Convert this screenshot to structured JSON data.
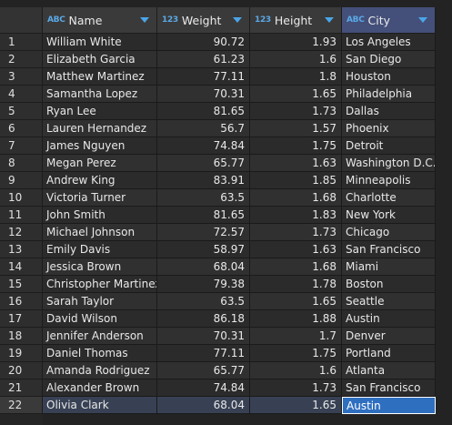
{
  "columns": [
    {
      "key": "name",
      "label": "Name",
      "type_icon": "ABC",
      "icon_name": "text-type-icon"
    },
    {
      "key": "weight",
      "label": "Weight",
      "type_icon": "123",
      "icon_name": "number-type-icon"
    },
    {
      "key": "height",
      "label": "Height",
      "type_icon": "123",
      "icon_name": "number-type-icon"
    },
    {
      "key": "city",
      "label": "City",
      "type_icon": "ABC",
      "icon_name": "text-type-icon"
    }
  ],
  "rows": [
    {
      "num": "1",
      "name": "William White",
      "weight": "90.72",
      "height": "1.93",
      "city": "Los Angeles"
    },
    {
      "num": "2",
      "name": "Elizabeth Garcia",
      "weight": "61.23",
      "height": "1.6",
      "city": "San Diego"
    },
    {
      "num": "3",
      "name": "Matthew Martinez",
      "weight": "77.11",
      "height": "1.8",
      "city": "Houston"
    },
    {
      "num": "4",
      "name": "Samantha Lopez",
      "weight": "70.31",
      "height": "1.65",
      "city": "Philadelphia"
    },
    {
      "num": "5",
      "name": "Ryan Lee",
      "weight": "81.65",
      "height": "1.73",
      "city": "Dallas"
    },
    {
      "num": "6",
      "name": "Lauren Hernandez",
      "weight": "56.7",
      "height": "1.57",
      "city": "Phoenix"
    },
    {
      "num": "7",
      "name": "James Nguyen",
      "weight": "74.84",
      "height": "1.75",
      "city": "Detroit"
    },
    {
      "num": "8",
      "name": "Megan Perez",
      "weight": "65.77",
      "height": "1.63",
      "city": "Washington D.C."
    },
    {
      "num": "9",
      "name": "Andrew King",
      "weight": "83.91",
      "height": "1.85",
      "city": "Minneapolis"
    },
    {
      "num": "10",
      "name": "Victoria Turner",
      "weight": "63.5",
      "height": "1.68",
      "city": "Charlotte"
    },
    {
      "num": "11",
      "name": "John Smith",
      "weight": "81.65",
      "height": "1.83",
      "city": "New York"
    },
    {
      "num": "12",
      "name": "Michael Johnson",
      "weight": "72.57",
      "height": "1.73",
      "city": "Chicago"
    },
    {
      "num": "13",
      "name": "Emily Davis",
      "weight": "58.97",
      "height": "1.63",
      "city": "San Francisco"
    },
    {
      "num": "14",
      "name": "Jessica Brown",
      "weight": "68.04",
      "height": "1.68",
      "city": "Miami"
    },
    {
      "num": "15",
      "name": "Christopher Martinez",
      "weight": "79.38",
      "height": "1.78",
      "city": "Boston"
    },
    {
      "num": "16",
      "name": "Sarah Taylor",
      "weight": "63.5",
      "height": "1.65",
      "city": "Seattle"
    },
    {
      "num": "17",
      "name": "David Wilson",
      "weight": "86.18",
      "height": "1.88",
      "city": "Austin"
    },
    {
      "num": "18",
      "name": "Jennifer Anderson",
      "weight": "70.31",
      "height": "1.7",
      "city": "Denver"
    },
    {
      "num": "19",
      "name": "Daniel Thomas",
      "weight": "77.11",
      "height": "1.75",
      "city": "Portland"
    },
    {
      "num": "20",
      "name": "Amanda Rodriguez",
      "weight": "65.77",
      "height": "1.6",
      "city": "Atlanta"
    },
    {
      "num": "21",
      "name": "Alexander Brown",
      "weight": "74.84",
      "height": "1.73",
      "city": "San Francisco"
    },
    {
      "num": "22",
      "name": "Olivia Clark",
      "weight": "68.04",
      "height": "1.65",
      "city": "Austin"
    }
  ],
  "selection": {
    "row": 22,
    "column": "city"
  },
  "colors": {
    "header_bg": "#3a3a3a",
    "selected_header_bg": "#44507a",
    "type_icon": "#5aa9e6",
    "active_cell_bg": "#2f6fc0",
    "selected_row_bg": "#384154"
  }
}
